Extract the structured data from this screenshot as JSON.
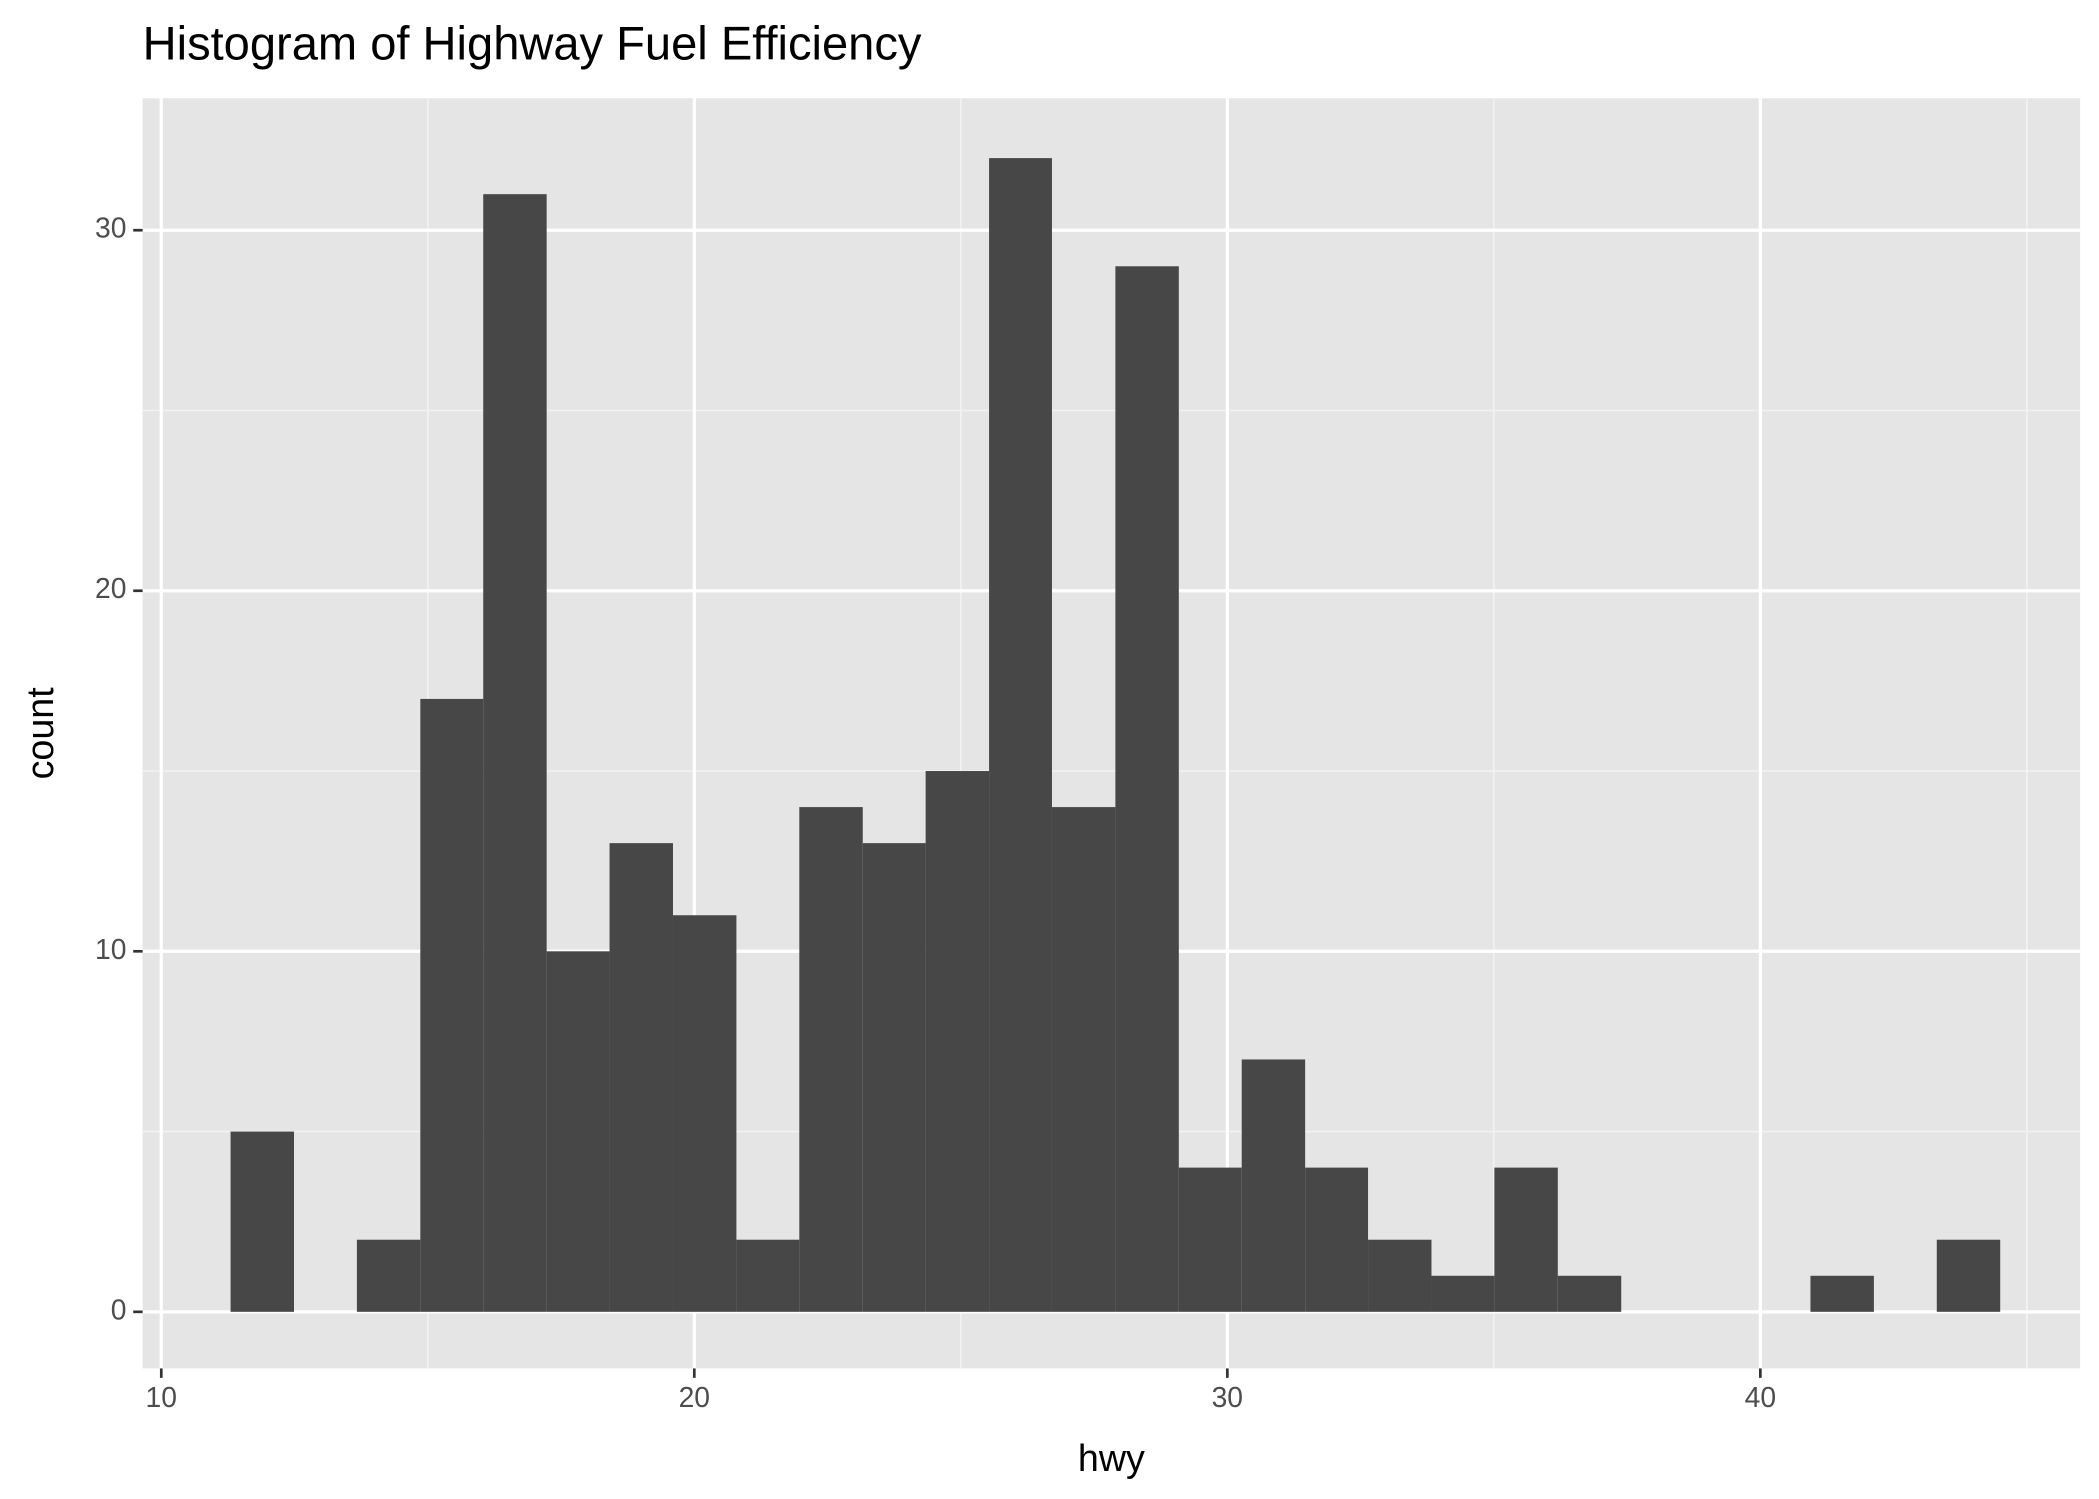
{
  "chart_data": {
    "type": "histogram",
    "title": "Histogram of Highway Fuel Efficiency",
    "x_label": "hwy",
    "y_label": "count",
    "bins": [
      11.3,
      12.49,
      13.67,
      14.86,
      16.04,
      17.23,
      18.41,
      19.6,
      20.79,
      21.97,
      23.16,
      24.34,
      25.53,
      26.71,
      27.9,
      29.09,
      30.27,
      31.46,
      32.64,
      33.83,
      35.01,
      36.2,
      37.39,
      38.57,
      39.76,
      40.94,
      42.13,
      43.31,
      44.5
    ],
    "values": [
      5,
      0,
      2,
      17,
      31,
      10,
      13,
      11,
      2,
      14,
      13,
      15,
      32,
      14,
      29,
      4,
      7,
      4,
      2,
      1,
      4,
      1,
      0,
      0,
      0,
      1,
      0,
      2
    ],
    "color": "#474747",
    "xlim": [
      9.65,
      46.0
    ],
    "xticks": [
      10,
      20,
      30,
      40
    ],
    "x_minor_ticks": [
      15,
      25,
      35,
      45
    ],
    "ylim": [
      -1.57,
      33.66
    ],
    "yticks": [
      0,
      10,
      20,
      30
    ],
    "y_minor_ticks": [
      5,
      15,
      25
    ],
    "grid": true,
    "panel_color": "#e5e5e5"
  }
}
